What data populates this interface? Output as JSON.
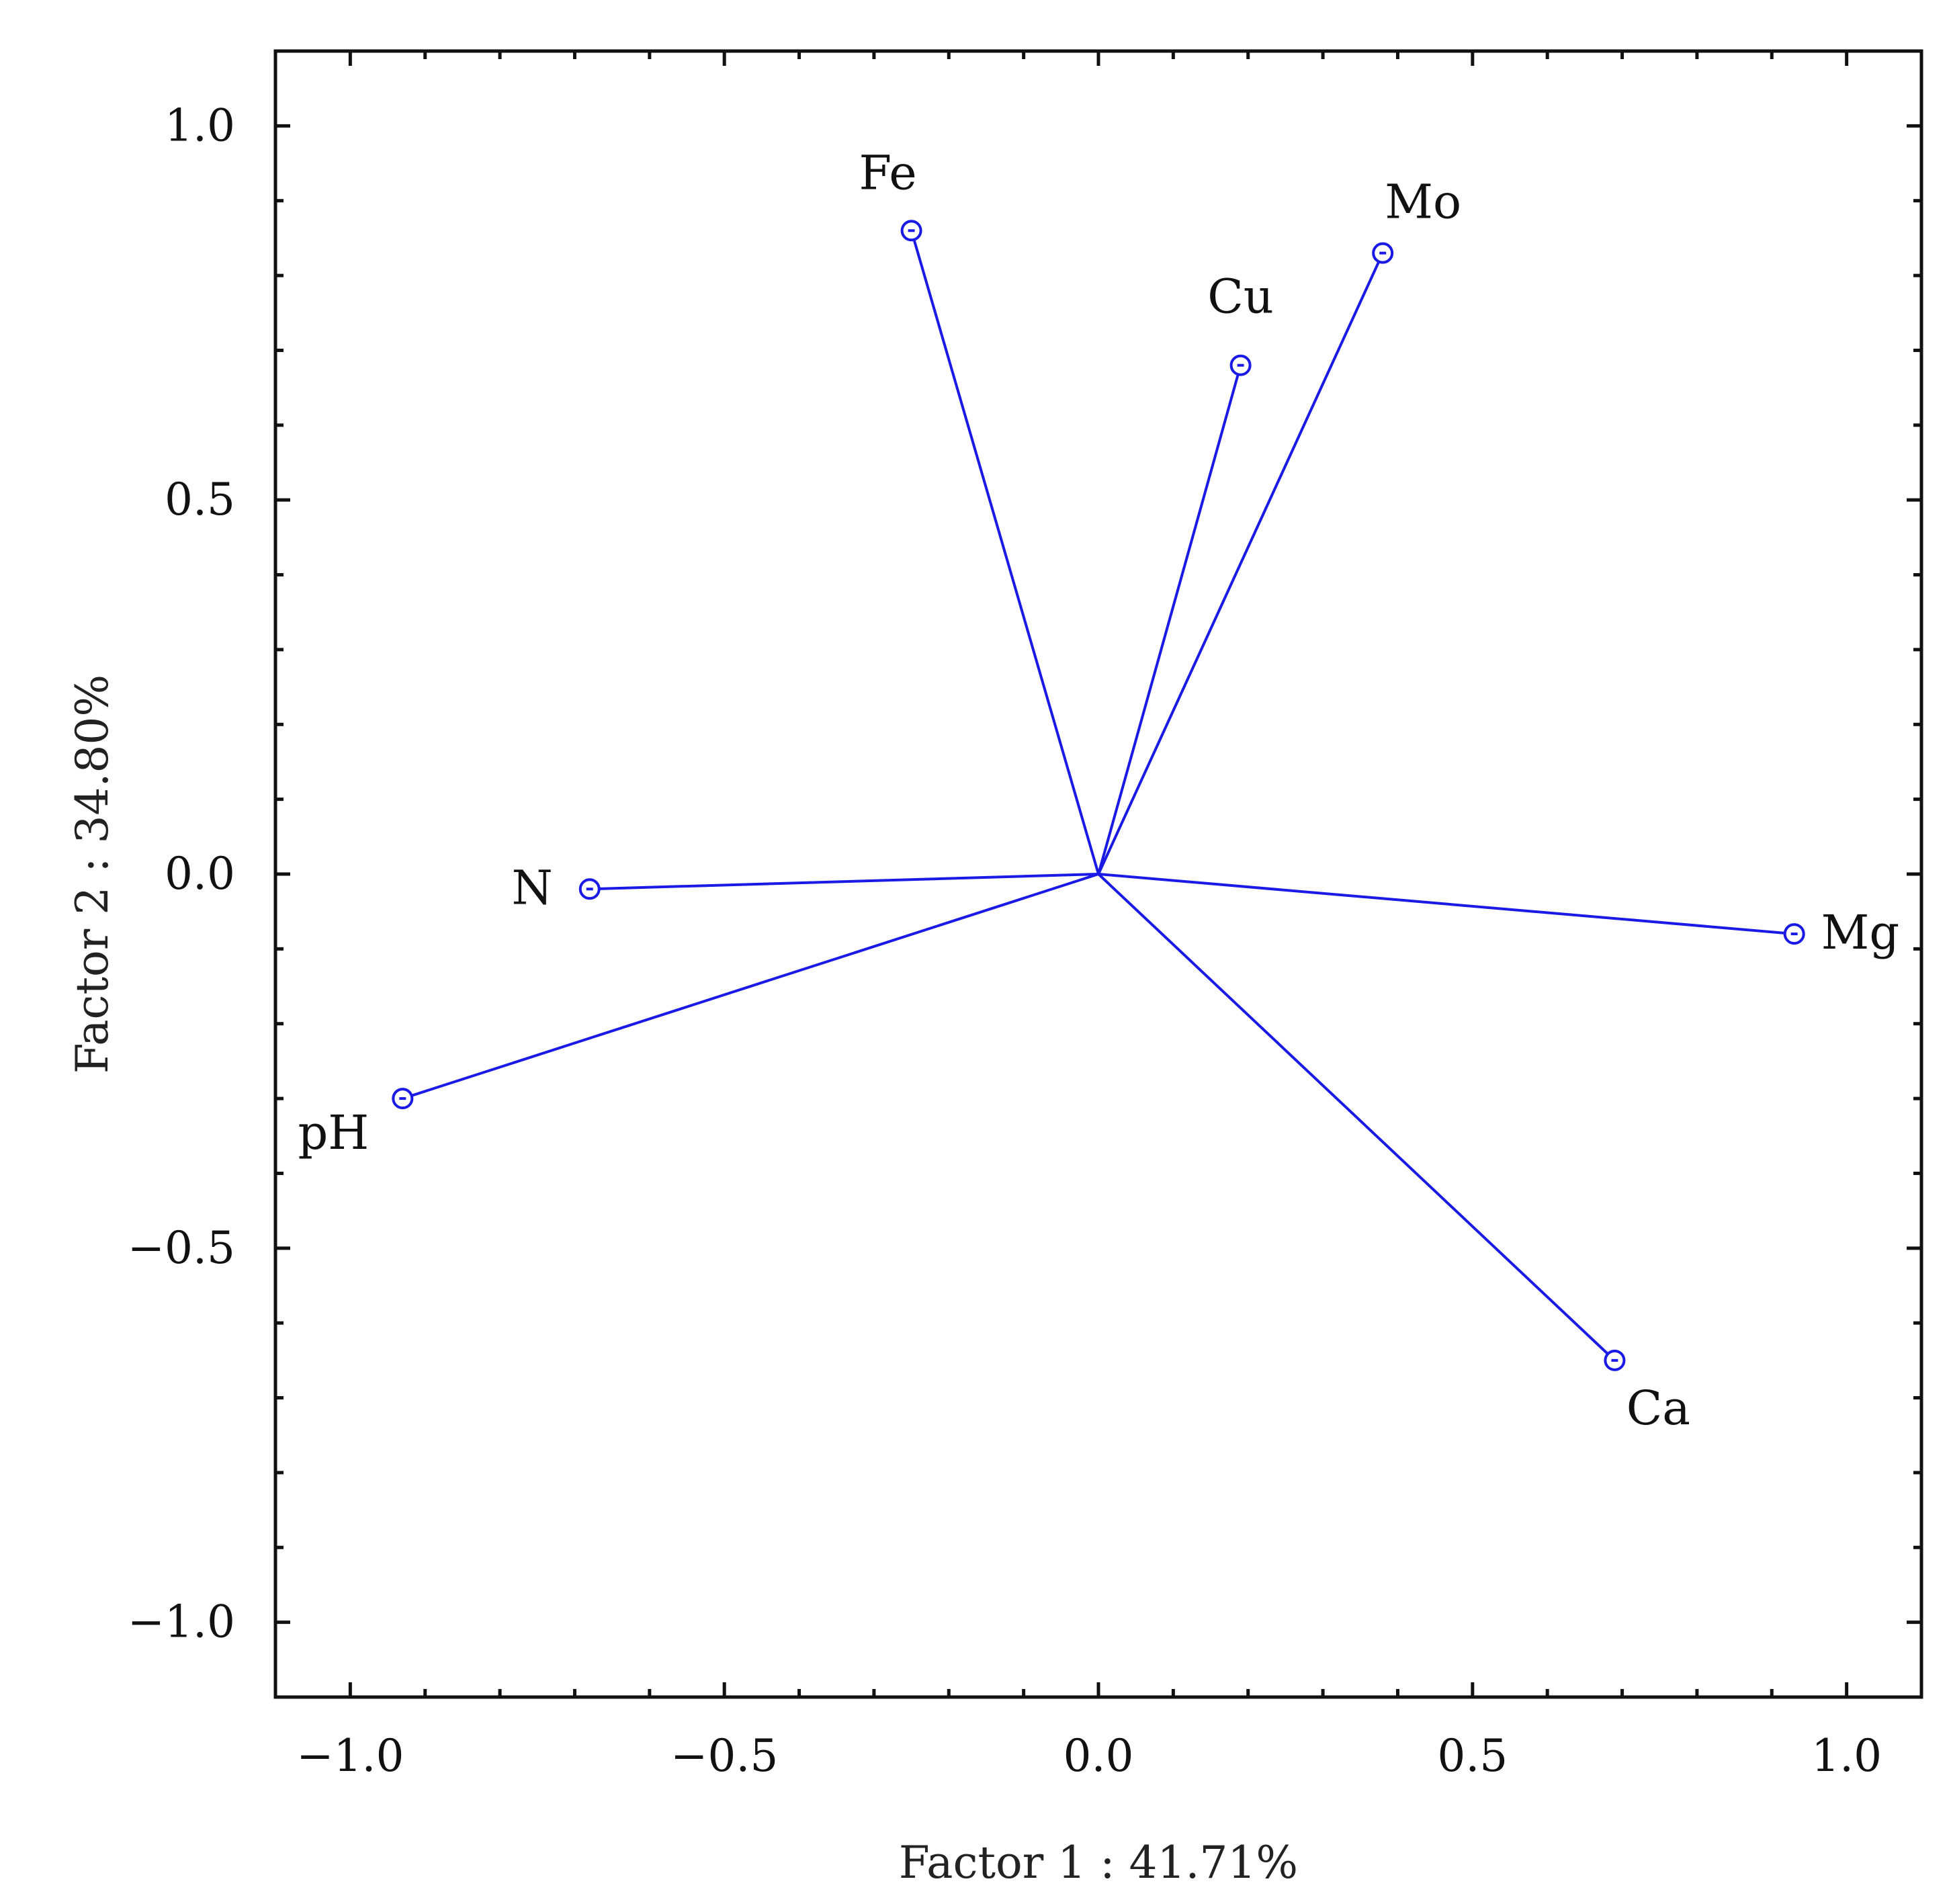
{
  "chart_data": {
    "type": "scatter",
    "subtype": "factor-loading-vectors",
    "xlabel": "Factor 1 : 41.71%",
    "ylabel": "Factor 2 : 34.80%",
    "xlim": [
      -1.1,
      1.1
    ],
    "ylim": [
      -1.1,
      1.1
    ],
    "x_ticks": [
      -1.0,
      -0.5,
      0.0,
      0.5,
      1.0
    ],
    "x_tick_labels": [
      "−1.0",
      "−0.5",
      "0.0",
      "0.5",
      "1.0"
    ],
    "y_ticks": [
      1.0,
      0.5,
      0.0,
      -0.5,
      -1.0
    ],
    "y_tick_labels": [
      "1.0",
      "0.5",
      "0.0",
      "−0.5",
      "−1.0"
    ],
    "grid": false,
    "color": "#1a1ae6",
    "points": [
      {
        "label": "Fe",
        "x": -0.25,
        "y": 0.86
      },
      {
        "label": "Cu",
        "x": 0.19,
        "y": 0.68
      },
      {
        "label": "Mo",
        "x": 0.38,
        "y": 0.83
      },
      {
        "label": "N",
        "x": -0.68,
        "y": -0.02
      },
      {
        "label": "Mg",
        "x": 0.93,
        "y": -0.08
      },
      {
        "label": "pH",
        "x": -0.93,
        "y": -0.3
      },
      {
        "label": "Ca",
        "x": 0.69,
        "y": -0.65
      }
    ]
  }
}
